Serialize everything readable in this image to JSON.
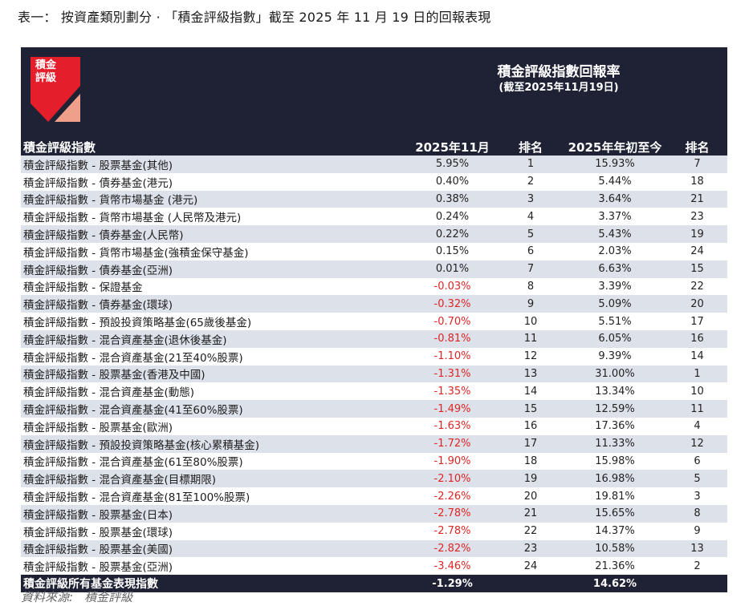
{
  "page_title": "表一： 按資產類別劃分 · 「積金評級指數」截至 2025 年 11 月 19 日的回報表現",
  "logo": {
    "line1": "積金",
    "line2": "評級",
    "red": "#e41e2b",
    "salmon": "#f0a08a"
  },
  "header": {
    "title": "積金評級指數回報率",
    "subtitle": "(截至2025年11月19日)",
    "bg": "#1f2235"
  },
  "columns": {
    "name": "積金評級指數",
    "month": "2025年11月",
    "rank1": "排名",
    "ytd": "2025年年初至今",
    "rank2": "排名"
  },
  "rows": [
    {
      "name": "積金評級指數 - 股票基金(其他)",
      "month": "5.95%",
      "rank1": "1",
      "ytd": "15.93%",
      "rank2": "7"
    },
    {
      "name": "積金評級指數 - 債券基金(港元)",
      "month": "0.40%",
      "rank1": "2",
      "ytd": "5.44%",
      "rank2": "18"
    },
    {
      "name": "積金評級指數 - 貨幣市場基金 (港元)",
      "month": "0.38%",
      "rank1": "3",
      "ytd": "3.64%",
      "rank2": "21"
    },
    {
      "name": "積金評級指數 - 貨幣市場基金 (人民幣及港元)",
      "month": "0.24%",
      "rank1": "4",
      "ytd": "3.37%",
      "rank2": "23"
    },
    {
      "name": "積金評級指數 - 債券基金(人民幣)",
      "month": "0.22%",
      "rank1": "5",
      "ytd": "5.43%",
      "rank2": "19"
    },
    {
      "name": "積金評級指數 - 貨幣市場基金(強積金保守基金)",
      "month": "0.15%",
      "rank1": "6",
      "ytd": "2.03%",
      "rank2": "24"
    },
    {
      "name": "積金評級指數 - 債券基金(亞洲)",
      "month": "0.01%",
      "rank1": "7",
      "ytd": "6.63%",
      "rank2": "15"
    },
    {
      "name": "積金評級指數 - 保證基金",
      "month": "-0.03%",
      "rank1": "8",
      "ytd": "3.39%",
      "rank2": "22"
    },
    {
      "name": "積金評級指數 - 債券基金(環球)",
      "month": "-0.32%",
      "rank1": "9",
      "ytd": "5.09%",
      "rank2": "20"
    },
    {
      "name": "積金評級指數 - 預設投資策略基金(65歲後基金)",
      "month": "-0.70%",
      "rank1": "10",
      "ytd": "5.51%",
      "rank2": "17"
    },
    {
      "name": "積金評級指數 - 混合資產基金(退休後基金)",
      "month": "-0.81%",
      "rank1": "11",
      "ytd": "6.05%",
      "rank2": "16"
    },
    {
      "name": "積金評級指數 - 混合資產基金(21至40%股票)",
      "month": "-1.10%",
      "rank1": "12",
      "ytd": "9.39%",
      "rank2": "14"
    },
    {
      "name": "積金評級指數 - 股票基金(香港及中國)",
      "month": "-1.31%",
      "rank1": "13",
      "ytd": "31.00%",
      "rank2": "1"
    },
    {
      "name": "積金評級指數 - 混合資產基金(動態)",
      "month": "-1.35%",
      "rank1": "14",
      "ytd": "13.34%",
      "rank2": "10"
    },
    {
      "name": "積金評級指數 - 混合資產基金(41至60%股票)",
      "month": "-1.49%",
      "rank1": "15",
      "ytd": "12.59%",
      "rank2": "11"
    },
    {
      "name": "積金評級指數 - 股票基金(歐洲)",
      "month": "-1.63%",
      "rank1": "16",
      "ytd": "17.36%",
      "rank2": "4"
    },
    {
      "name": "積金評級指數 - 預設投資策略基金(核心累積基金)",
      "month": "-1.72%",
      "rank1": "17",
      "ytd": "11.33%",
      "rank2": "12"
    },
    {
      "name": "積金評級指數 - 混合資產基金(61至80%股票)",
      "month": "-1.90%",
      "rank1": "18",
      "ytd": "15.98%",
      "rank2": "6"
    },
    {
      "name": "積金評級指數 - 混合資產基金(目標期限)",
      "month": "-2.10%",
      "rank1": "19",
      "ytd": "16.98%",
      "rank2": "5"
    },
    {
      "name": "積金評級指數 - 混合資產基金(81至100%股票)",
      "month": "-2.26%",
      "rank1": "20",
      "ytd": "19.81%",
      "rank2": "3"
    },
    {
      "name": "積金評級指數 - 股票基金(日本)",
      "month": "-2.78%",
      "rank1": "21",
      "ytd": "15.65%",
      "rank2": "8"
    },
    {
      "name": "積金評級指數 - 股票基金(環球)",
      "month": "-2.78%",
      "rank1": "22",
      "ytd": "14.37%",
      "rank2": "9"
    },
    {
      "name": "積金評級指數 - 股票基金(美國)",
      "month": "-2.82%",
      "rank1": "23",
      "ytd": "10.58%",
      "rank2": "13"
    },
    {
      "name": "積金評級指數 - 股票基金(亞洲)",
      "month": "-3.46%",
      "rank1": "24",
      "ytd": "21.36%",
      "rank2": "2"
    }
  ],
  "total": {
    "name": "積金評級所有基金表現指數",
    "month": "-1.29%",
    "ytd": "14.62%"
  },
  "source": {
    "label": "資料來源:",
    "value": "積金評級"
  },
  "colors": {
    "negative": "#e02424",
    "row_stripe": "#dde1ea",
    "header_bg": "#1f2235"
  }
}
